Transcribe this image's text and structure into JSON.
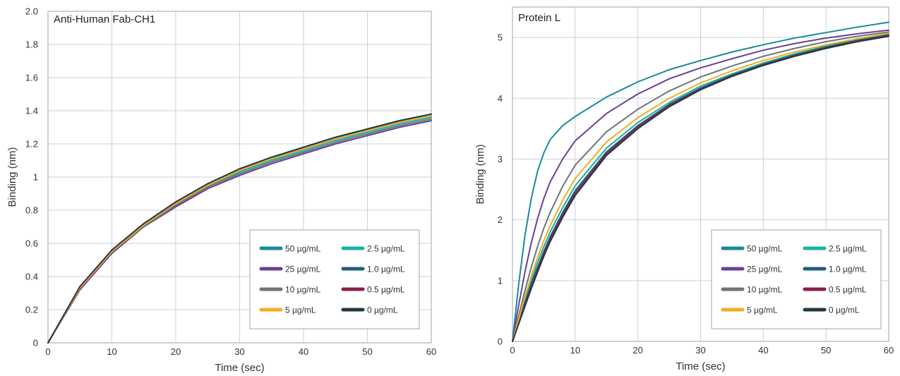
{
  "chart_data": [
    {
      "type": "line",
      "title": "Anti-Human Fab-CH1",
      "xlabel": "Time (sec)",
      "ylabel": "Binding (nm)",
      "xlim": [
        0,
        60
      ],
      "ylim": [
        0,
        2.0
      ],
      "xticks": [
        0,
        10,
        20,
        30,
        40,
        50,
        60
      ],
      "xtick_labels": [
        "0",
        "10",
        "20",
        "30",
        "40",
        "50",
        "60"
      ],
      "yticks": [
        0,
        0.2,
        0.4,
        0.6,
        0.8,
        1.0,
        1.2,
        1.4,
        1.6,
        1.8,
        2.0
      ],
      "ytick_labels": [
        "0",
        "0.2",
        "0.4",
        "0.6",
        "0.8",
        "1",
        "1.2",
        "1.4",
        "1.6",
        "1.8",
        "2.0"
      ],
      "grid": true,
      "legend_position": "bottom-right",
      "series": [
        {
          "name": "50 µg/mL",
          "color": "#1b8a99",
          "x": [
            0,
            5,
            10,
            15,
            20,
            25,
            30,
            35,
            40,
            45,
            50,
            55,
            60
          ],
          "y": [
            0,
            0.33,
            0.55,
            0.71,
            0.84,
            0.95,
            1.04,
            1.11,
            1.17,
            1.23,
            1.28,
            1.33,
            1.37
          ]
        },
        {
          "name": "2.5 µg/mL",
          "color": "#14b3a3",
          "x": [
            0,
            5,
            10,
            15,
            20,
            25,
            30,
            35,
            40,
            45,
            50,
            55,
            60
          ],
          "y": [
            0,
            0.33,
            0.55,
            0.71,
            0.83,
            0.94,
            1.03,
            1.1,
            1.16,
            1.22,
            1.27,
            1.32,
            1.36
          ]
        },
        {
          "name": "25 µg/mL",
          "color": "#6a3f98",
          "x": [
            0,
            5,
            10,
            15,
            20,
            25,
            30,
            35,
            40,
            45,
            50,
            55,
            60
          ],
          "y": [
            0,
            0.32,
            0.54,
            0.7,
            0.82,
            0.93,
            1.01,
            1.08,
            1.14,
            1.2,
            1.25,
            1.3,
            1.34
          ]
        },
        {
          "name": "1.0 µg/mL",
          "color": "#1d5f7a",
          "x": [
            0,
            5,
            10,
            15,
            20,
            25,
            30,
            35,
            40,
            45,
            50,
            55,
            60
          ],
          "y": [
            0,
            0.33,
            0.55,
            0.71,
            0.84,
            0.95,
            1.04,
            1.11,
            1.18,
            1.24,
            1.29,
            1.34,
            1.38
          ]
        },
        {
          "name": "10 µg/mL",
          "color": "#6d747a",
          "x": [
            0,
            5,
            10,
            15,
            20,
            25,
            30,
            35,
            40,
            45,
            50,
            55,
            60
          ],
          "y": [
            0,
            0.33,
            0.55,
            0.7,
            0.83,
            0.94,
            1.02,
            1.09,
            1.15,
            1.21,
            1.26,
            1.31,
            1.35
          ]
        },
        {
          "name": "0.5 µg/mL",
          "color": "#8a1f4f",
          "x": [
            0,
            5,
            10,
            15,
            20,
            25,
            30,
            35,
            40,
            45,
            50,
            55,
            60
          ],
          "y": [
            0,
            0.33,
            0.55,
            0.71,
            0.84,
            0.95,
            1.04,
            1.11,
            1.17,
            1.23,
            1.28,
            1.33,
            1.37
          ]
        },
        {
          "name": "5 µg/mL",
          "color": "#f0ad22",
          "x": [
            0,
            5,
            10,
            15,
            20,
            25,
            30,
            35,
            40,
            45,
            50,
            55,
            60
          ],
          "y": [
            0,
            0.33,
            0.55,
            0.71,
            0.84,
            0.95,
            1.04,
            1.11,
            1.17,
            1.23,
            1.28,
            1.33,
            1.37
          ]
        },
        {
          "name": "0 µg/mL",
          "color": "#243845",
          "x": [
            0,
            5,
            10,
            15,
            20,
            25,
            30,
            35,
            40,
            45,
            50,
            55,
            60
          ],
          "y": [
            0,
            0.34,
            0.56,
            0.72,
            0.85,
            0.96,
            1.05,
            1.12,
            1.18,
            1.24,
            1.29,
            1.34,
            1.38
          ]
        }
      ]
    },
    {
      "type": "line",
      "title": "Protein L",
      "xlabel": "Time (sec)",
      "ylabel": "Binding (nm)",
      "xlim": [
        0,
        60
      ],
      "ylim": [
        0,
        5.5
      ],
      "xticks": [
        0,
        10,
        20,
        30,
        40,
        50,
        60
      ],
      "xtick_labels": [
        "0",
        "10",
        "20",
        "30",
        "40",
        "50",
        "60"
      ],
      "yticks": [
        0,
        1,
        2,
        3,
        4,
        5
      ],
      "ytick_labels": [
        "0",
        "1",
        "2",
        "3",
        "4",
        "5"
      ],
      "grid": true,
      "legend_position": "bottom-right",
      "series": [
        {
          "name": "50 µg/mL",
          "color": "#1b8a99",
          "x": [
            0,
            1,
            2,
            3,
            4,
            5,
            6,
            8,
            10,
            15,
            20,
            25,
            30,
            35,
            40,
            45,
            50,
            55,
            60
          ],
          "y": [
            0,
            0.95,
            1.75,
            2.35,
            2.8,
            3.1,
            3.32,
            3.55,
            3.7,
            4.02,
            4.27,
            4.47,
            4.62,
            4.76,
            4.88,
            4.99,
            5.08,
            5.17,
            5.25
          ]
        },
        {
          "name": "2.5 µg/mL",
          "color": "#14b3a3",
          "x": [
            0,
            1,
            2,
            3,
            4,
            5,
            6,
            8,
            10,
            15,
            20,
            25,
            30,
            35,
            40,
            45,
            50,
            55,
            60
          ],
          "y": [
            0,
            0.35,
            0.7,
            1.0,
            1.3,
            1.56,
            1.8,
            2.2,
            2.56,
            3.18,
            3.6,
            3.93,
            4.2,
            4.4,
            4.58,
            4.73,
            4.86,
            4.96,
            5.05
          ]
        },
        {
          "name": "25 µg/mL",
          "color": "#6a3f98",
          "x": [
            0,
            1,
            2,
            3,
            4,
            5,
            6,
            8,
            10,
            15,
            20,
            25,
            30,
            35,
            40,
            45,
            50,
            55,
            60
          ],
          "y": [
            0,
            0.6,
            1.15,
            1.62,
            2.02,
            2.35,
            2.62,
            3.0,
            3.3,
            3.75,
            4.07,
            4.32,
            4.5,
            4.65,
            4.79,
            4.9,
            4.99,
            5.06,
            5.12
          ]
        },
        {
          "name": "1.0 µg/mL",
          "color": "#1d5f7a",
          "x": [
            0,
            1,
            2,
            3,
            4,
            5,
            6,
            8,
            10,
            15,
            20,
            25,
            30,
            35,
            40,
            45,
            50,
            55,
            60
          ],
          "y": [
            0,
            0.32,
            0.64,
            0.94,
            1.22,
            1.48,
            1.72,
            2.12,
            2.48,
            3.12,
            3.55,
            3.9,
            4.17,
            4.38,
            4.56,
            4.71,
            4.84,
            4.95,
            5.04
          ]
        },
        {
          "name": "10 µg/mL",
          "color": "#6d747a",
          "x": [
            0,
            1,
            2,
            3,
            4,
            5,
            6,
            8,
            10,
            15,
            20,
            25,
            30,
            35,
            40,
            45,
            50,
            55,
            60
          ],
          "y": [
            0,
            0.42,
            0.84,
            1.22,
            1.56,
            1.86,
            2.12,
            2.55,
            2.9,
            3.45,
            3.82,
            4.12,
            4.35,
            4.53,
            4.69,
            4.82,
            4.93,
            5.02,
            5.09
          ]
        },
        {
          "name": "0.5 µg/mL",
          "color": "#8a1f4f",
          "x": [
            0,
            1,
            2,
            3,
            4,
            5,
            6,
            8,
            10,
            15,
            20,
            25,
            30,
            35,
            40,
            45,
            50,
            55,
            60
          ],
          "y": [
            0,
            0.3,
            0.6,
            0.9,
            1.18,
            1.44,
            1.68,
            2.08,
            2.44,
            3.09,
            3.53,
            3.88,
            4.15,
            4.37,
            4.55,
            4.7,
            4.83,
            4.94,
            5.03
          ]
        },
        {
          "name": "5 µg/mL",
          "color": "#f0ad22",
          "x": [
            0,
            1,
            2,
            3,
            4,
            5,
            6,
            8,
            10,
            15,
            20,
            25,
            30,
            35,
            40,
            45,
            50,
            55,
            60
          ],
          "y": [
            0,
            0.37,
            0.74,
            1.07,
            1.38,
            1.66,
            1.9,
            2.32,
            2.68,
            3.28,
            3.68,
            4.0,
            4.25,
            4.45,
            4.62,
            4.76,
            4.88,
            4.98,
            5.07
          ]
        },
        {
          "name": "0 µg/mL",
          "color": "#243845",
          "x": [
            0,
            1,
            2,
            3,
            4,
            5,
            6,
            8,
            10,
            15,
            20,
            25,
            30,
            35,
            40,
            45,
            50,
            55,
            60
          ],
          "y": [
            0,
            0.29,
            0.58,
            0.87,
            1.14,
            1.4,
            1.64,
            2.04,
            2.4,
            3.06,
            3.5,
            3.86,
            4.14,
            4.36,
            4.54,
            4.69,
            4.82,
            4.93,
            5.02
          ]
        }
      ]
    }
  ]
}
